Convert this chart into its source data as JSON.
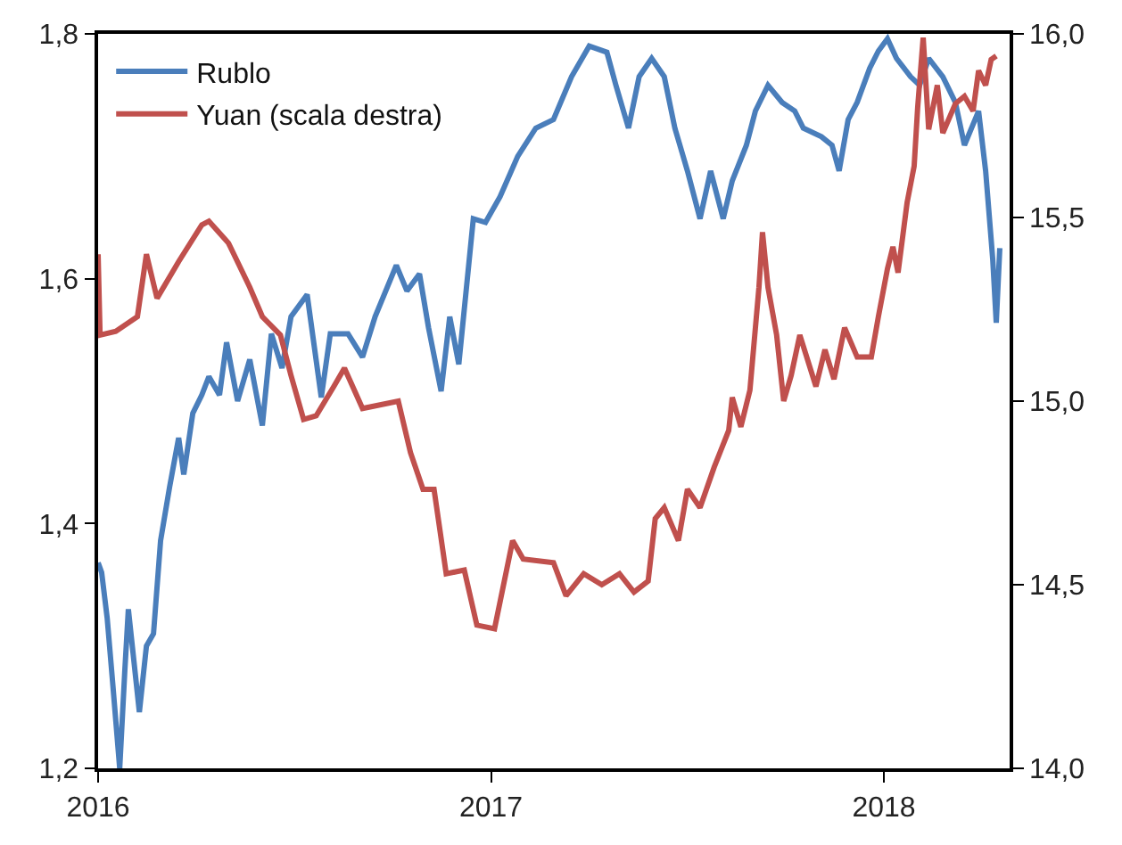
{
  "chart_data": {
    "type": "line",
    "legend": "top left",
    "grid": false,
    "marker": "none",
    "line_style": "solid",
    "xlim": [
      2016,
      2018.32
    ],
    "xticks": [
      2016,
      2017,
      2018
    ],
    "ylim": [
      1.2,
      1.8
    ],
    "yticks": [
      {
        "value": 1.2,
        "label": "1,2"
      },
      {
        "value": 1.4,
        "label": "1,4"
      },
      {
        "value": 1.6,
        "label": "1,6"
      },
      {
        "value": 1.8,
        "label": "1,8"
      }
    ],
    "y2lim": [
      14.0,
      16.0
    ],
    "y2ticks": [
      {
        "value": 14.0,
        "label": "14,0"
      },
      {
        "value": 14.5,
        "label": "14,5"
      },
      {
        "value": 15.0,
        "label": "15,0"
      },
      {
        "value": 15.5,
        "label": "15,5"
      },
      {
        "value": 16.0,
        "label": "16,0"
      }
    ],
    "series": [
      {
        "name": "Rublo",
        "color": "#4a7ebb",
        "x": [
          2016.0,
          2016.009,
          2016.023,
          2016.036,
          2016.055,
          2016.068,
          2016.077,
          2016.105,
          2016.123,
          2016.141,
          2016.159,
          2016.182,
          2016.205,
          2016.218,
          2016.241,
          2016.264,
          2016.282,
          2016.309,
          2016.327,
          2016.355,
          2016.386,
          2016.418,
          2016.441,
          2016.468,
          2016.491,
          2016.532,
          2016.568,
          2016.591,
          2016.636,
          2016.673,
          2016.705,
          2016.759,
          2016.786,
          2016.818,
          2016.841,
          2016.873,
          2016.895,
          2016.918,
          2016.955,
          2016.986,
          2017.023,
          2017.068,
          2017.114,
          2017.159,
          2017.205,
          2017.25,
          2017.295,
          2017.318,
          2017.35,
          2017.377,
          2017.409,
          2017.441,
          2017.468,
          2017.5,
          2017.532,
          2017.559,
          2017.591,
          2017.614,
          2017.65,
          2017.673,
          2017.705,
          2017.741,
          2017.773,
          2017.795,
          2017.841,
          2017.868,
          2017.886,
          2017.909,
          2017.932,
          2017.964,
          2017.986,
          2018.009,
          2018.032,
          2018.068,
          2018.091,
          2018.114,
          2018.15,
          2018.182,
          2018.205,
          2018.241,
          2018.259,
          2018.277,
          2018.286,
          2018.295
        ],
        "values": [
          1.368,
          1.36,
          1.323,
          1.274,
          1.2,
          1.28,
          1.33,
          1.246,
          1.3,
          1.31,
          1.386,
          1.43,
          1.47,
          1.44,
          1.49,
          1.505,
          1.52,
          1.505,
          1.548,
          1.5,
          1.534,
          1.48,
          1.555,
          1.527,
          1.569,
          1.587,
          1.503,
          1.555,
          1.555,
          1.536,
          1.569,
          1.611,
          1.59,
          1.604,
          1.56,
          1.508,
          1.569,
          1.53,
          1.649,
          1.646,
          1.667,
          1.7,
          1.723,
          1.73,
          1.765,
          1.79,
          1.785,
          1.758,
          1.723,
          1.765,
          1.78,
          1.765,
          1.723,
          1.688,
          1.649,
          1.688,
          1.649,
          1.68,
          1.709,
          1.737,
          1.758,
          1.744,
          1.737,
          1.723,
          1.716,
          1.709,
          1.688,
          1.73,
          1.744,
          1.772,
          1.786,
          1.796,
          1.78,
          1.765,
          1.758,
          1.78,
          1.765,
          1.744,
          1.709,
          1.737,
          1.688,
          1.616,
          1.564,
          1.625
        ]
      },
      {
        "name": "Yuan (scala destra)",
        "color": "#c0504d",
        "axis": "y2",
        "x": [
          2016.0,
          2016.005,
          2016.045,
          2016.1,
          2016.123,
          2016.15,
          2016.205,
          2016.264,
          2016.282,
          2016.332,
          2016.386,
          2016.418,
          2016.464,
          2016.491,
          2016.523,
          2016.555,
          2016.6,
          2016.627,
          2016.673,
          2016.764,
          2016.795,
          2016.827,
          2016.855,
          2016.886,
          2016.932,
          2016.964,
          2017.009,
          2017.055,
          2017.082,
          2017.159,
          2017.191,
          2017.236,
          2017.282,
          2017.327,
          2017.364,
          2017.4,
          2017.418,
          2017.441,
          2017.477,
          2017.5,
          2017.532,
          2017.568,
          2017.605,
          2017.614,
          2017.636,
          2017.659,
          2017.682,
          2017.691,
          2017.705,
          2017.727,
          2017.745,
          2017.764,
          2017.786,
          2017.827,
          2017.85,
          2017.873,
          2017.9,
          2017.932,
          2017.968,
          2017.986,
          2018.009,
          2018.023,
          2018.036,
          2018.059,
          2018.077,
          2018.086,
          2018.1,
          2018.114,
          2018.136,
          2018.15,
          2018.182,
          2018.205,
          2018.227,
          2018.241,
          2018.259,
          2018.273,
          2018.286
        ],
        "values": [
          15.4,
          15.18,
          15.19,
          15.23,
          15.4,
          15.28,
          15.38,
          15.48,
          15.49,
          15.43,
          15.31,
          15.23,
          15.18,
          15.07,
          14.95,
          14.96,
          15.04,
          15.09,
          14.98,
          15.0,
          14.86,
          14.76,
          14.76,
          14.53,
          14.54,
          14.39,
          14.38,
          14.62,
          14.57,
          14.56,
          14.47,
          14.53,
          14.5,
          14.53,
          14.48,
          14.51,
          14.68,
          14.71,
          14.62,
          14.76,
          14.71,
          14.82,
          14.92,
          15.01,
          14.93,
          15.03,
          15.31,
          15.46,
          15.31,
          15.18,
          15.0,
          15.07,
          15.18,
          15.04,
          15.14,
          15.06,
          15.2,
          15.12,
          15.12,
          15.23,
          15.36,
          15.42,
          15.35,
          15.54,
          15.64,
          15.8,
          15.99,
          15.74,
          15.86,
          15.73,
          15.81,
          15.83,
          15.79,
          15.9,
          15.86,
          15.93,
          15.94
        ]
      }
    ]
  }
}
